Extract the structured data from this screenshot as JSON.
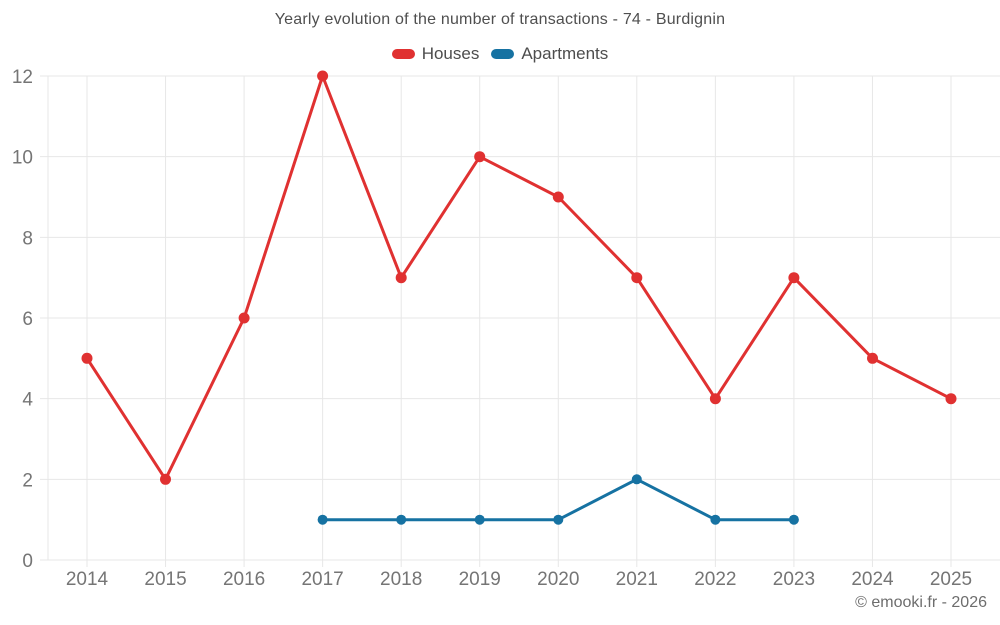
{
  "chart_data": {
    "type": "line",
    "title": "Yearly evolution of the number of transactions - 74 - Burdignin",
    "credit": "© emooki.fr - 2026",
    "categories": [
      2014,
      2015,
      2016,
      2017,
      2018,
      2019,
      2020,
      2021,
      2022,
      2023,
      2024,
      2025
    ],
    "series": [
      {
        "name": "Houses",
        "color": "#e03131",
        "values": [
          5,
          2,
          6,
          12,
          7,
          10,
          9,
          7,
          4,
          7,
          5,
          4
        ]
      },
      {
        "name": "Apartments",
        "color": "#1672a2",
        "values": [
          null,
          null,
          null,
          1,
          1,
          1,
          1,
          2,
          1,
          1,
          null,
          null
        ]
      }
    ],
    "xlabel": "",
    "ylabel": "",
    "ylim": [
      0,
      12
    ],
    "yticks": [
      0,
      2,
      4,
      6,
      8,
      10,
      12
    ],
    "grid": true,
    "grid_color": "#e7e7e7",
    "legend_position": "top",
    "marker": "circle"
  }
}
